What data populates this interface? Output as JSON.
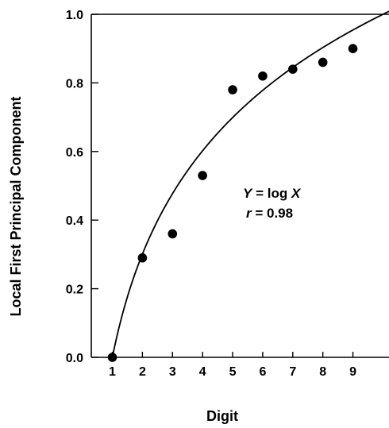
{
  "chart_data": {
    "type": "scatter",
    "title": "",
    "xlabel": "Digit",
    "ylabel": "Local First Principal Component",
    "xlim": [
      0.3,
      10.2
    ],
    "ylim": [
      0.0,
      1.0
    ],
    "x_ticks": [
      1,
      2,
      3,
      4,
      5,
      6,
      7,
      8,
      9
    ],
    "x_tick_labels": [
      "1",
      "2",
      "3",
      "4",
      "5",
      "6",
      "7",
      "8",
      "9"
    ],
    "y_ticks": [
      0.0,
      0.2,
      0.4,
      0.6,
      0.8,
      1.0
    ],
    "y_tick_labels": [
      "0.0",
      "0.2",
      "0.4",
      "0.6",
      "0.8",
      "1.0"
    ],
    "grid": false,
    "points": [
      {
        "x": 1,
        "y": 0.0
      },
      {
        "x": 2,
        "y": 0.29
      },
      {
        "x": 3,
        "y": 0.36
      },
      {
        "x": 4,
        "y": 0.53
      },
      {
        "x": 5,
        "y": 0.78
      },
      {
        "x": 6,
        "y": 0.82
      },
      {
        "x": 7,
        "y": 0.84
      },
      {
        "x": 8,
        "y": 0.86
      },
      {
        "x": 9,
        "y": 0.9
      }
    ],
    "fit_curve": {
      "type": "log",
      "x_start": 1,
      "x_end": 10.2
    },
    "annotations": {
      "equation_var_y": "Y",
      "equation_rest": " = log ",
      "equation_var_x": "X",
      "r_var": "r",
      "r_rest": " = 0.98"
    }
  }
}
